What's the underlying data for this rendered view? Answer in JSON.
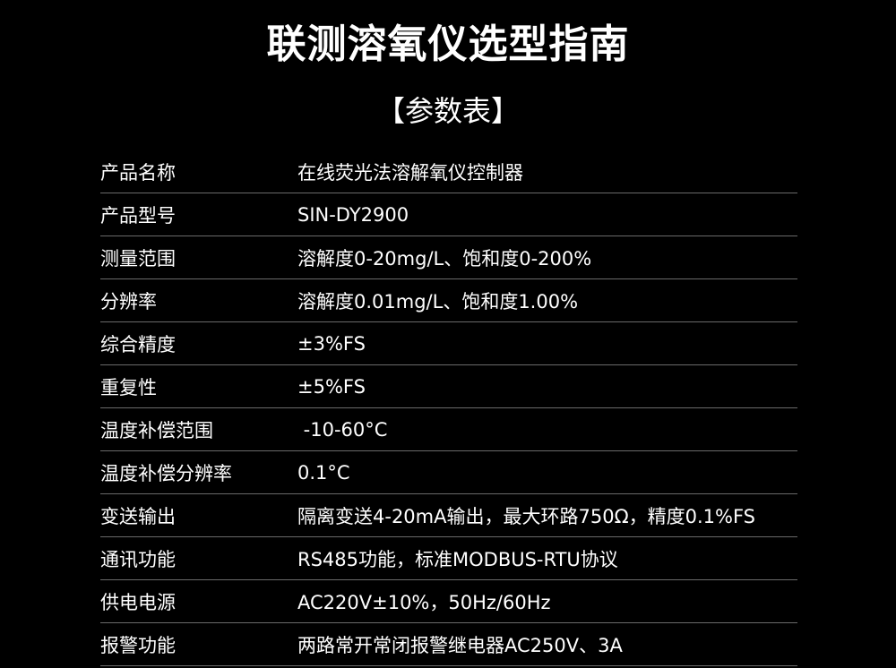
{
  "title": "联测溶氧仪选型指南",
  "subtitle": "【参数表】",
  "rows": [
    {
      "label": "产品名称",
      "value": "在线荧光法溶解氧仪控制器"
    },
    {
      "label": "产品型号",
      "value": "SIN-DY2900"
    },
    {
      "label": "测量范围",
      "value": "溶解度0-20mg/L、饱和度0-200%"
    },
    {
      "label": "分辨率",
      "value": "溶解度0.01mg/L、饱和度1.00%"
    },
    {
      "label": "综合精度",
      "value": "±3%FS"
    },
    {
      "label": "重复性",
      "value": "±5%FS"
    },
    {
      "label": "温度补偿范围",
      "value": " -10-60°C"
    },
    {
      "label": "温度补偿分辨率",
      "value": "0.1°C"
    },
    {
      "label": "变送输出",
      "value": "隔离变送4-20mA输出，最大环路750Ω，精度0.1%FS"
    },
    {
      "label": "通讯功能",
      "value": "RS485功能，标准MODBUS-RTU协议"
    },
    {
      "label": "供电电源",
      "value": "AC220V±10%，50Hz/60Hz"
    },
    {
      "label": "报警功能",
      "value": "两路常开常闭报警继电器AC250V、3A"
    }
  ]
}
